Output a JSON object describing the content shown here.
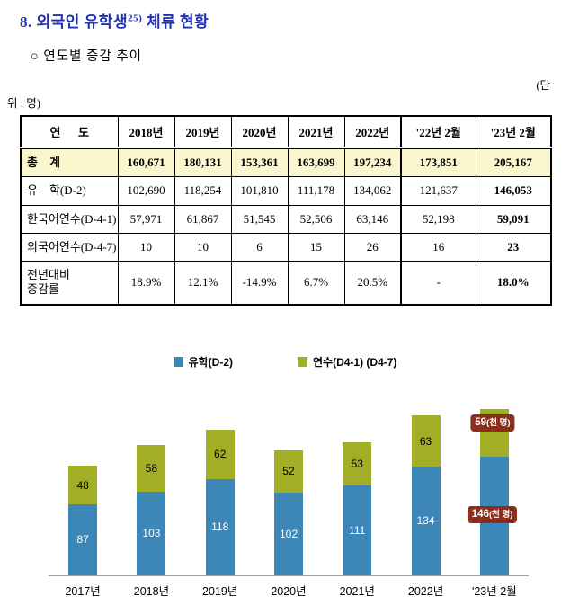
{
  "title": {
    "prefix": "8. 외국인 유학생",
    "sup": "25)",
    "suffix": " 체류 현황"
  },
  "subtitle": "○ 연도별 증감 추이",
  "unit_note": {
    "right_fragment": "(단",
    "left_fragment": "위 : 명)"
  },
  "table": {
    "columns": [
      "연      도",
      "2018년",
      "2019년",
      "2020년",
      "2021년",
      "2022년",
      "'22년 2월",
      "'23년 2월"
    ],
    "rows": [
      {
        "label": "총    계",
        "values": [
          "160,671",
          "180,131",
          "153,361",
          "163,699",
          "197,234",
          "173,851",
          "205,167"
        ],
        "highlight": true
      },
      {
        "label": "유    학(D-2)",
        "values": [
          "102,690",
          "118,254",
          "101,810",
          "111,178",
          "134,062",
          "121,637",
          "146,053"
        ],
        "highlight": false
      },
      {
        "label": "한국어연수(D-4-1)",
        "values": [
          "57,971",
          "61,867",
          "51,545",
          "52,506",
          "63,146",
          "52,198",
          "59,091"
        ],
        "highlight": false
      },
      {
        "label": "외국어연수(D-4-7)",
        "values": [
          "10",
          "10",
          "6",
          "15",
          "26",
          "16",
          "23"
        ],
        "highlight": false
      },
      {
        "label": "전년대비\n증감률",
        "values": [
          "18.9%",
          "12.1%",
          "-14.9%",
          "6.7%",
          "20.5%",
          "-",
          "18.0%"
        ],
        "highlight": false
      }
    ]
  },
  "chart_data": {
    "type": "bar",
    "subtype": "stacked",
    "categories": [
      "2017년",
      "2018년",
      "2019년",
      "2020년",
      "2021년",
      "2022년",
      "'23년 2월"
    ],
    "series": [
      {
        "name": "유학(D-2)",
        "color": "#3d86b8",
        "values": [
          87,
          103,
          118,
          102,
          111,
          134,
          146
        ]
      },
      {
        "name": "연수(D4-1) (D4-7)",
        "color": "#a2af26",
        "values": [
          48,
          58,
          62,
          52,
          53,
          63,
          59
        ]
      }
    ],
    "value_unit_thousands": "천 명",
    "annotations": [
      {
        "value": "59",
        "unit": "(천 명)",
        "series": "연수(D4-1) (D4-7)",
        "category": "'23년 2월"
      },
      {
        "value": "146",
        "unit": "(천 명)",
        "series": "유학(D-2)",
        "category": "'23년 2월"
      }
    ],
    "legend_position": "top",
    "grid": false,
    "ylim": [
      0,
      220
    ]
  }
}
